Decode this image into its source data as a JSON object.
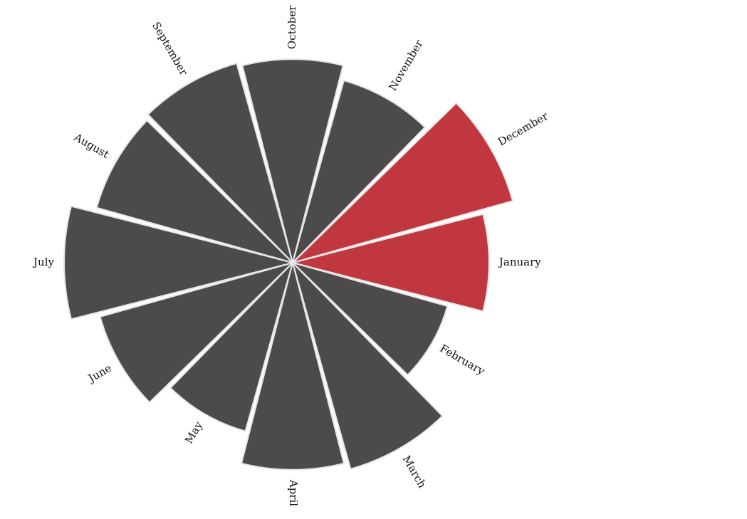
{
  "chart_data": {
    "type": "polar-bar",
    "title": "",
    "categories": [
      "January",
      "February",
      "March",
      "April",
      "May",
      "June",
      "July",
      "August",
      "September",
      "October",
      "November",
      "December"
    ],
    "values": [
      275,
      225,
      300,
      290,
      245,
      280,
      320,
      285,
      290,
      285,
      265,
      320
    ],
    "highlighted": [
      "December",
      "January"
    ],
    "radius_domain": [
      0,
      320
    ],
    "colors": {
      "default": "#4d4a4b",
      "highlight": "#c0373f",
      "stroke": "#e6e6e6"
    }
  }
}
